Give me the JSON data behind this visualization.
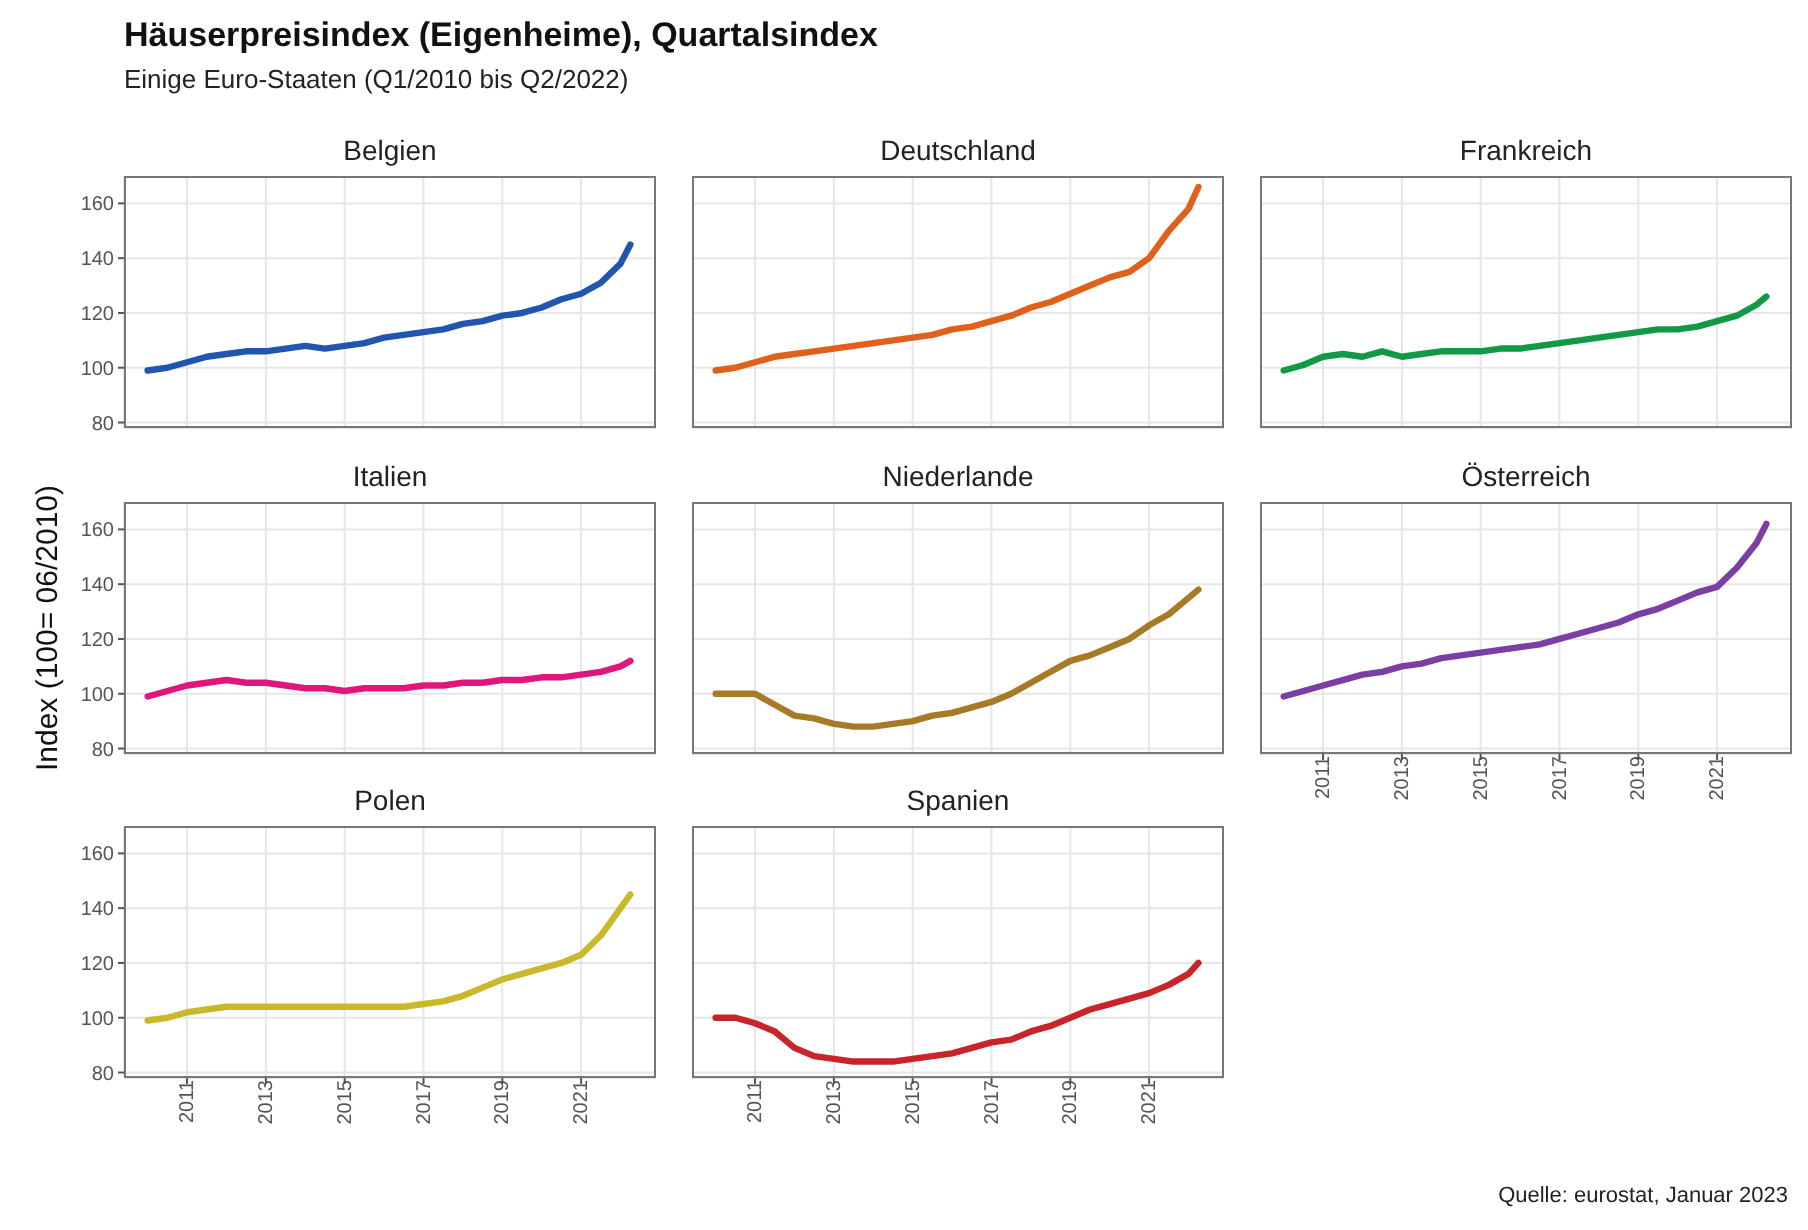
{
  "chart_data": [
    {
      "type": "line",
      "title": "Belgien",
      "annotations": [
        "Häuserpreisindex (Eigenheime), Quartalsindex",
        "Einige Euro-Staaten (Q1/2010 bis Q2/2022)",
        "Quelle: eurostat, Januar 2023"
      ],
      "x": [
        2010,
        2010.5,
        2011,
        2011.5,
        2012,
        2012.5,
        2013,
        2013.5,
        2014,
        2014.5,
        2015,
        2015.5,
        2016,
        2016.5,
        2017,
        2017.5,
        2018,
        2018.5,
        2019,
        2019.5,
        2020,
        2020.5,
        2021,
        2021.5,
        2022,
        2022.25
      ],
      "series": [
        {
          "color": "#2255b0",
          "values": [
            99,
            100,
            102,
            104,
            105,
            106,
            106,
            107,
            108,
            107,
            108,
            109,
            111,
            112,
            113,
            114,
            116,
            117,
            119,
            120,
            122,
            125,
            127,
            131,
            138,
            145
          ]
        }
      ],
      "xlim": [
        2009.4,
        2022.9
      ],
      "ylim": [
        78,
        170
      ],
      "xticks": [
        2011,
        2013,
        2015,
        2017,
        2019,
        2021
      ],
      "yticks": [
        80,
        100,
        120,
        140,
        160
      ],
      "grid": true,
      "tick_labels": "y"
    },
    {
      "type": "line",
      "title": "Deutschland",
      "x": [
        2010,
        2010.5,
        2011,
        2011.5,
        2012,
        2012.5,
        2013,
        2013.5,
        2014,
        2014.5,
        2015,
        2015.5,
        2016,
        2016.5,
        2017,
        2017.5,
        2018,
        2018.5,
        2019,
        2019.5,
        2020,
        2020.5,
        2021,
        2021.5,
        2022,
        2022.25
      ],
      "series": [
        {
          "color": "#e0611c",
          "values": [
            99,
            100,
            102,
            104,
            105,
            106,
            107,
            108,
            109,
            110,
            111,
            112,
            114,
            115,
            117,
            119,
            122,
            124,
            127,
            130,
            133,
            135,
            140,
            150,
            158,
            166
          ]
        }
      ],
      "xlim": [
        2009.4,
        2022.9
      ],
      "ylim": [
        78,
        170
      ],
      "xticks": [
        2011,
        2013,
        2015,
        2017,
        2019,
        2021
      ],
      "yticks": [
        80,
        100,
        120,
        140,
        160
      ],
      "grid": true,
      "tick_labels": false
    },
    {
      "type": "line",
      "title": "Frankreich",
      "x": [
        2010,
        2010.5,
        2011,
        2011.5,
        2012,
        2012.5,
        2013,
        2013.5,
        2014,
        2014.5,
        2015,
        2015.5,
        2016,
        2016.5,
        2017,
        2017.5,
        2018,
        2018.5,
        2019,
        2019.5,
        2020,
        2020.5,
        2021,
        2021.5,
        2022,
        2022.25
      ],
      "series": [
        {
          "color": "#119944",
          "values": [
            99,
            101,
            104,
            105,
            104,
            106,
            104,
            105,
            106,
            106,
            106,
            107,
            107,
            108,
            109,
            110,
            111,
            112,
            113,
            114,
            114,
            115,
            117,
            119,
            123,
            126
          ]
        }
      ],
      "xlim": [
        2009.4,
        2022.9
      ],
      "ylim": [
        78,
        170
      ],
      "xticks": [
        2011,
        2013,
        2015,
        2017,
        2019,
        2021
      ],
      "yticks": [
        80,
        100,
        120,
        140,
        160
      ],
      "grid": true,
      "tick_labels": false
    },
    {
      "type": "line",
      "title": "Italien",
      "ylabel": "Index (100= 06/2010)",
      "x": [
        2010,
        2010.5,
        2011,
        2011.5,
        2012,
        2012.5,
        2013,
        2013.5,
        2014,
        2014.5,
        2015,
        2015.5,
        2016,
        2016.5,
        2017,
        2017.5,
        2018,
        2018.5,
        2019,
        2019.5,
        2020,
        2020.5,
        2021,
        2021.5,
        2022,
        2022.25
      ],
      "series": [
        {
          "color": "#e0177a",
          "values": [
            99,
            101,
            103,
            104,
            105,
            104,
            104,
            103,
            102,
            102,
            101,
            102,
            102,
            102,
            103,
            103,
            104,
            104,
            105,
            105,
            106,
            106,
            107,
            108,
            110,
            112
          ]
        }
      ],
      "xlim": [
        2009.4,
        2022.9
      ],
      "ylim": [
        78,
        170
      ],
      "xticks": [
        2011,
        2013,
        2015,
        2017,
        2019,
        2021
      ],
      "yticks": [
        80,
        100,
        120,
        140,
        160
      ],
      "grid": true,
      "tick_labels": "y"
    },
    {
      "type": "line",
      "title": "Niederlande",
      "x": [
        2010,
        2010.5,
        2011,
        2011.5,
        2012,
        2012.5,
        2013,
        2013.5,
        2014,
        2014.5,
        2015,
        2015.5,
        2016,
        2016.5,
        2017,
        2017.5,
        2018,
        2018.5,
        2019,
        2019.5,
        2020,
        2020.5,
        2021,
        2021.5,
        2022,
        2022.25
      ],
      "series": [
        {
          "color": "#a67a26",
          "values": [
            100,
            100,
            100,
            96,
            92,
            91,
            89,
            88,
            88,
            89,
            90,
            92,
            93,
            95,
            97,
            100,
            104,
            108,
            112,
            114,
            117,
            120,
            125,
            129,
            135,
            138
          ]
        }
      ],
      "xlim": [
        2009.4,
        2022.9
      ],
      "ylim": [
        78,
        170
      ],
      "xticks": [
        2011,
        2013,
        2015,
        2017,
        2019,
        2021
      ],
      "yticks": [
        80,
        100,
        120,
        140,
        160
      ],
      "grid": true,
      "tick_labels": false
    },
    {
      "type": "line",
      "title": "Österreich",
      "x": [
        2010,
        2010.5,
        2011,
        2011.5,
        2012,
        2012.5,
        2013,
        2013.5,
        2014,
        2014.5,
        2015,
        2015.5,
        2016,
        2016.5,
        2017,
        2017.5,
        2018,
        2018.5,
        2019,
        2019.5,
        2020,
        2020.5,
        2021,
        2021.5,
        2022,
        2022.25
      ],
      "series": [
        {
          "color": "#7b3ea3",
          "values": [
            99,
            101,
            103,
            105,
            107,
            108,
            110,
            111,
            113,
            114,
            115,
            116,
            117,
            118,
            120,
            122,
            124,
            126,
            129,
            131,
            134,
            137,
            139,
            146,
            155,
            162
          ]
        }
      ],
      "xlim": [
        2009.4,
        2022.9
      ],
      "ylim": [
        78,
        170
      ],
      "xticks": [
        2011,
        2013,
        2015,
        2017,
        2019,
        2021
      ],
      "yticks": [
        80,
        100,
        120,
        140,
        160
      ],
      "grid": true,
      "tick_labels": "x"
    },
    {
      "type": "line",
      "title": "Polen",
      "x": [
        2010,
        2010.5,
        2011,
        2011.5,
        2012,
        2012.5,
        2013,
        2013.5,
        2014,
        2014.5,
        2015,
        2015.5,
        2016,
        2016.5,
        2017,
        2017.5,
        2018,
        2018.5,
        2019,
        2019.5,
        2020,
        2020.5,
        2021,
        2021.5,
        2022,
        2022.25
      ],
      "series": [
        {
          "color": "#c8b82a",
          "values": [
            99,
            100,
            102,
            103,
            104,
            104,
            104,
            104,
            104,
            104,
            104,
            104,
            104,
            104,
            105,
            106,
            108,
            111,
            114,
            116,
            118,
            120,
            123,
            130,
            140,
            145
          ]
        }
      ],
      "xlim": [
        2009.4,
        2022.9
      ],
      "ylim": [
        78,
        170
      ],
      "xticks": [
        2011,
        2013,
        2015,
        2017,
        2019,
        2021
      ],
      "yticks": [
        80,
        100,
        120,
        140,
        160
      ],
      "grid": true
    },
    {
      "type": "line",
      "title": "Spanien",
      "x": [
        2010,
        2010.5,
        2011,
        2011.5,
        2012,
        2012.5,
        2013,
        2013.5,
        2014,
        2014.5,
        2015,
        2015.5,
        2016,
        2016.5,
        2017,
        2017.5,
        2018,
        2018.5,
        2019,
        2019.5,
        2020,
        2020.5,
        2021,
        2021.5,
        2022,
        2022.25
      ],
      "series": [
        {
          "color": "#c8242a",
          "values": [
            100,
            100,
            98,
            95,
            89,
            86,
            85,
            84,
            84,
            84,
            85,
            86,
            87,
            89,
            91,
            92,
            95,
            97,
            100,
            103,
            105,
            107,
            109,
            112,
            116,
            120
          ]
        }
      ],
      "xlim": [
        2009.4,
        2022.9
      ],
      "ylim": [
        78,
        170
      ],
      "xticks": [
        2011,
        2013,
        2015,
        2017,
        2019,
        2021
      ],
      "yticks": [
        80,
        100,
        120,
        140,
        160
      ],
      "grid": true,
      "tick_labels": "x"
    }
  ]
}
